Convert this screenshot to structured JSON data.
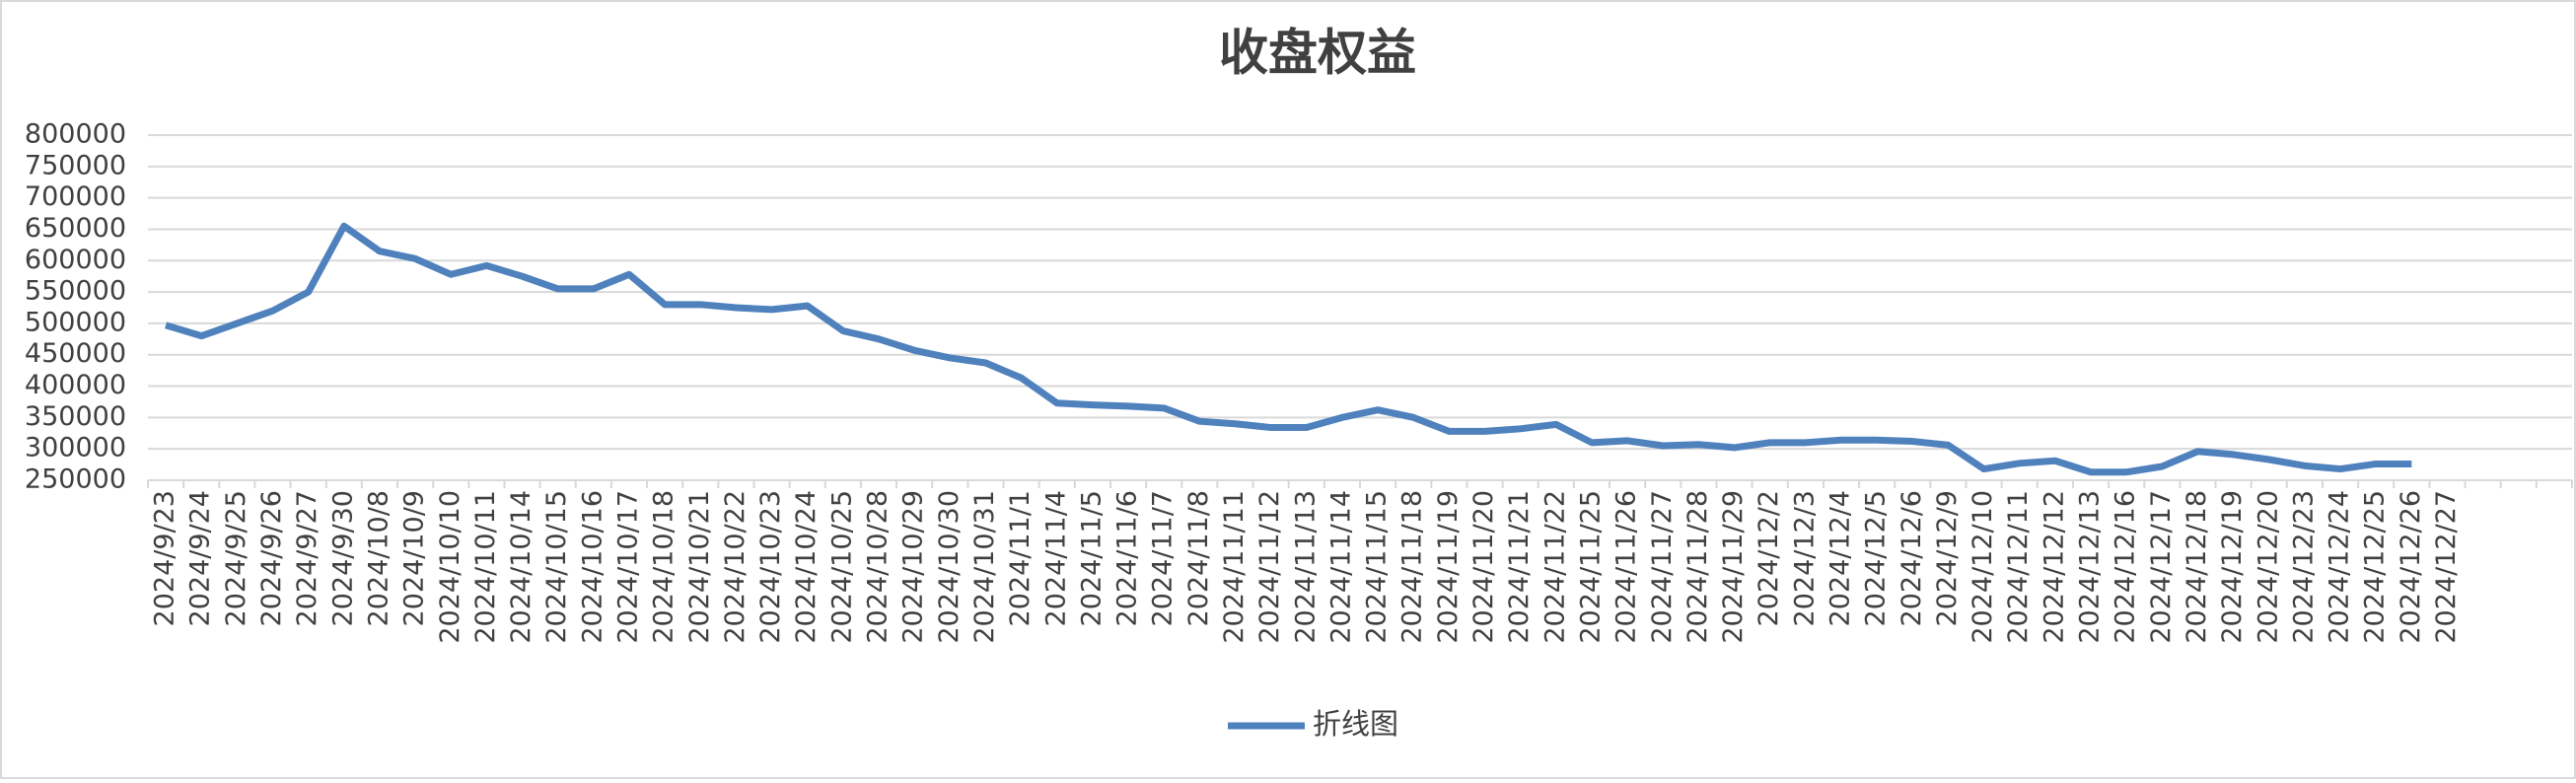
{
  "chart_data": {
    "type": "line",
    "title": "收盘权益",
    "categories": [
      "2024/9/23",
      "2024/9/24",
      "2024/9/25",
      "2024/9/26",
      "2024/9/27",
      "2024/9/30",
      "2024/10/8",
      "2024/10/9",
      "2024/10/10",
      "2024/10/11",
      "2024/10/14",
      "2024/10/15",
      "2024/10/16",
      "2024/10/17",
      "2024/10/18",
      "2024/10/21",
      "2024/10/22",
      "2024/10/23",
      "2024/10/24",
      "2024/10/25",
      "2024/10/28",
      "2024/10/29",
      "2024/10/30",
      "2024/10/31",
      "2024/11/1",
      "2024/11/4",
      "2024/11/5",
      "2024/11/6",
      "2024/11/7",
      "2024/11/8",
      "2024/11/11",
      "2024/11/12",
      "2024/11/13",
      "2024/11/14",
      "2024/11/15",
      "2024/11/18",
      "2024/11/19",
      "2024/11/20",
      "2024/11/21",
      "2024/11/22",
      "2024/11/25",
      "2024/11/26",
      "2024/11/27",
      "2024/11/28",
      "2024/11/29",
      "2024/12/2",
      "2024/12/3",
      "2024/12/4",
      "2024/12/5",
      "2024/12/6",
      "2024/12/9",
      "2024/12/10",
      "2024/12/11",
      "2024/12/12",
      "2024/12/13",
      "2024/12/16",
      "2024/12/17",
      "2024/12/18",
      "2024/12/19",
      "2024/12/20",
      "2024/12/23",
      "2024/12/24",
      "2024/12/25",
      "2024/12/26",
      "2024/12/27",
      null,
      null,
      null
    ],
    "series": [
      {
        "name": "折线图",
        "color": "#4f81bd",
        "values": [
          497000,
          480000,
          500000,
          520000,
          550000,
          655000,
          615000,
          603000,
          578000,
          592000,
          575000,
          555000,
          555000,
          578000,
          530000,
          530000,
          525000,
          522000,
          528000,
          488000,
          475000,
          457000,
          445000,
          437000,
          413000,
          373000,
          370000,
          368000,
          365000,
          344000,
          340000,
          334000,
          334000,
          350000,
          362000,
          350000,
          328000,
          328000,
          332000,
          339000,
          310000,
          313000,
          305000,
          307000,
          302000,
          310000,
          310000,
          314000,
          314000,
          312000,
          306000,
          268000,
          277000,
          281000,
          263000,
          263000,
          272000,
          296000,
          291000,
          283000,
          273000,
          268000,
          276000,
          276000,
          null,
          null,
          null,
          null
        ]
      }
    ],
    "ylim": [
      250000,
      800000
    ],
    "yticks": [
      250000,
      300000,
      350000,
      400000,
      450000,
      500000,
      550000,
      600000,
      650000,
      700000,
      750000,
      800000
    ],
    "grid": true,
    "legend": "bottom"
  }
}
